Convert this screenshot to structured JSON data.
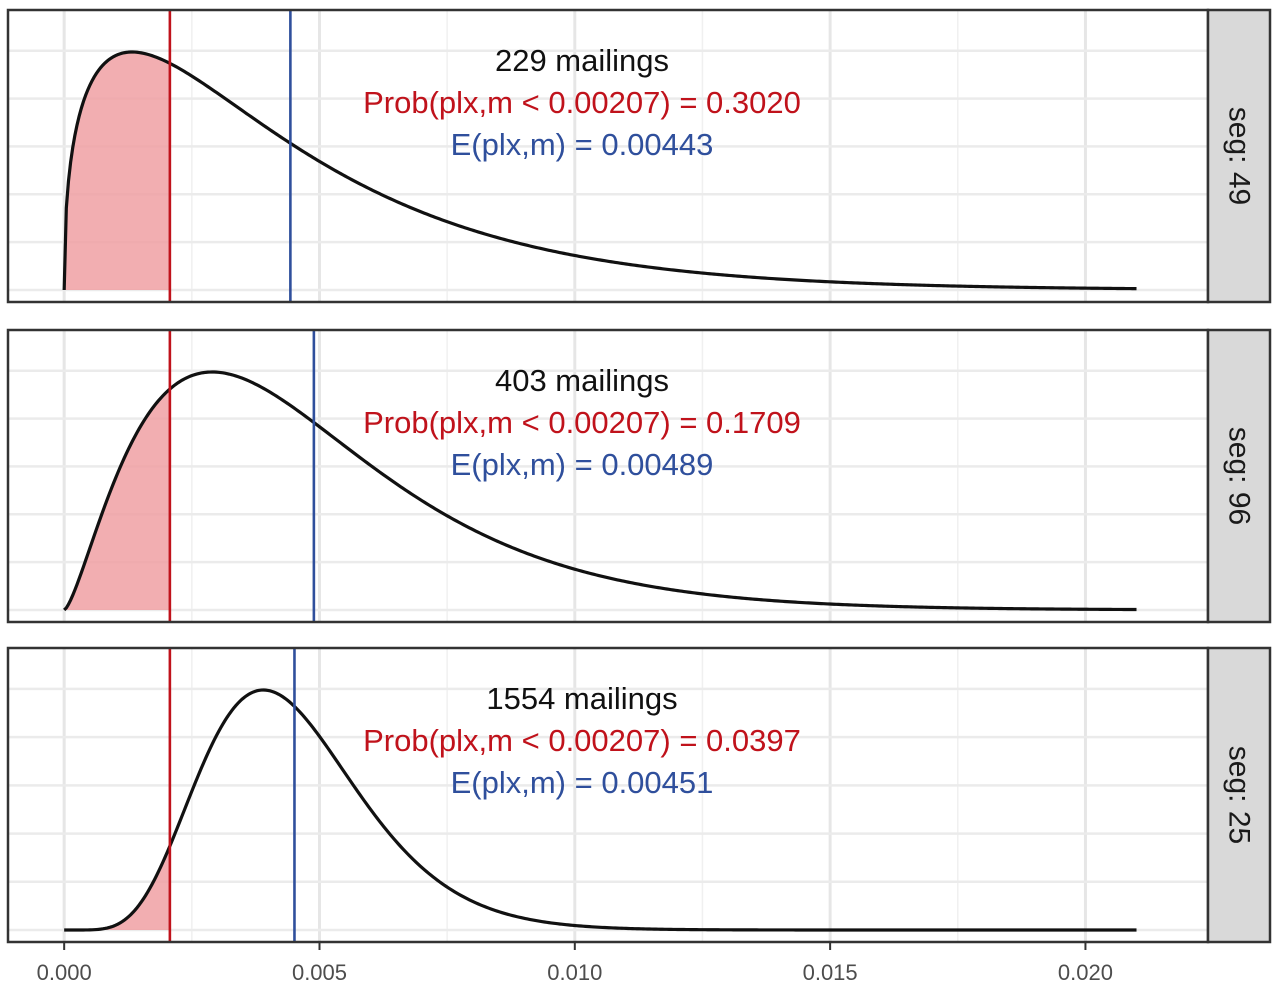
{
  "chart_data": {
    "type": "area",
    "xlim": [
      -0.0011,
      0.0224
    ],
    "x_ticks": [
      "0.000",
      "0.005",
      "0.010",
      "0.015",
      "0.020"
    ],
    "x_tick_values": [
      0,
      0.005,
      0.01,
      0.015,
      0.02
    ],
    "x_range_curve": [
      0,
      0.021
    ],
    "grid": true,
    "threshold": 0.00207,
    "colors": {
      "threshold_line": "#c0121b",
      "mean_line": "#2f4f9c",
      "shade": "#f0a0a3",
      "curve": "#111111",
      "strip": "#d9d9d9"
    },
    "panels": [
      {
        "strip": "seg: 49",
        "count_label": "229 mailings",
        "prob_label": "Prob(plx,m < 0.00207) = 0.3020",
        "mean_label": "E(plx,m) = 0.00443",
        "prob_below": 0.302,
        "mean": 0.00443,
        "mode": 0.00133
      },
      {
        "strip": "seg: 96",
        "count_label": "403 mailings",
        "prob_label": "Prob(plx,m < 0.00207) = 0.1709",
        "mean_label": "E(plx,m) = 0.00489",
        "prob_below": 0.1709,
        "mean": 0.00489,
        "mode": 0.0029
      },
      {
        "strip": "seg: 25",
        "count_label": "1554 mailings",
        "prob_label": "Prob(plx,m < 0.00207) = 0.0397",
        "mean_label": "E(plx,m) = 0.00451",
        "prob_below": 0.0397,
        "mean": 0.00451,
        "mode": 0.0039
      }
    ]
  }
}
